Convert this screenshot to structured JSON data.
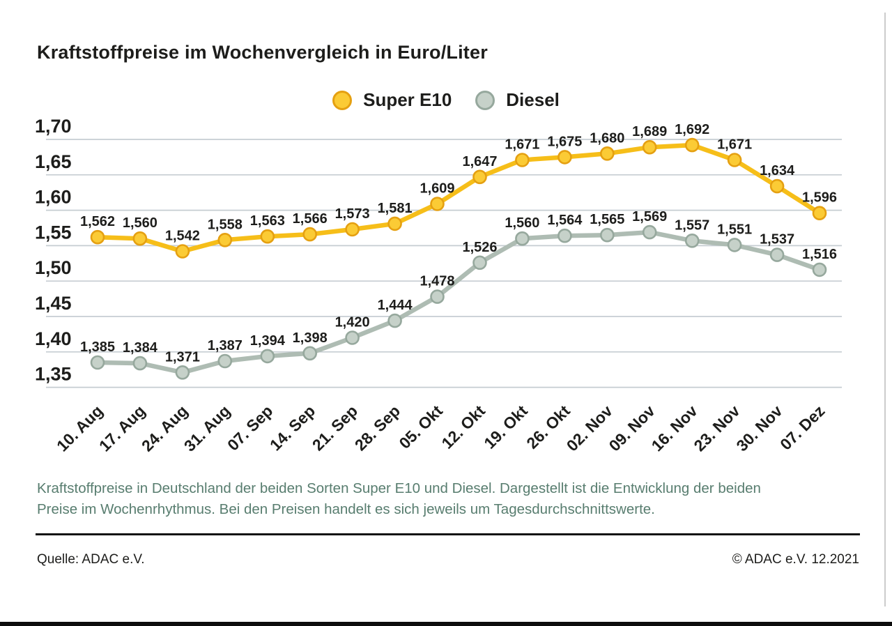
{
  "page": {
    "title": "Kraftstoffpreise im Wochenvergleich in Euro/Liter",
    "description": "Kraftstoffpreise in Deutschland der beiden Sorten Super E10 und Diesel. Dargestellt ist die Entwicklung der beiden Preise im Wochenrhythmus. Bei den Preisen handelt es sich jeweils um Tagesdurchschnittswerte.",
    "source": "Quelle: ADAC e.V.",
    "copyright": "© ADAC e.V. 12.2021"
  },
  "colors": {
    "super_e10_line": "#F6BE19",
    "super_e10_marker_fill": "#FBCB35",
    "super_e10_marker_stroke": "#E5A011",
    "diesel_line": "#AEBCB3",
    "diesel_marker_fill": "#C6D1C9",
    "diesel_marker_stroke": "#96A89D",
    "grid": "#C6CDD2",
    "text": "#1D1D1B",
    "description_text": "#587D6F"
  },
  "chart_data": {
    "type": "line",
    "title": "Kraftstoffpreise im Wochenvergleich in Euro/Liter",
    "categories": [
      "10. Aug",
      "17. Aug",
      "24. Aug",
      "31. Aug",
      "07. Sep",
      "14. Sep",
      "21. Sep",
      "28. Sep",
      "05. Okt",
      "12. Okt",
      "19. Okt",
      "26. Okt",
      "02. Nov",
      "09. Nov",
      "16. Nov",
      "23. Nov",
      "30. Nov",
      "07. Dez"
    ],
    "series": [
      {
        "name": "Super E10",
        "values": [
          1.562,
          1.56,
          1.542,
          1.558,
          1.563,
          1.566,
          1.573,
          1.581,
          1.609,
          1.647,
          1.671,
          1.675,
          1.68,
          1.689,
          1.692,
          1.671,
          1.634,
          1.596
        ]
      },
      {
        "name": "Diesel",
        "values": [
          1.385,
          1.384,
          1.371,
          1.387,
          1.394,
          1.398,
          1.42,
          1.444,
          1.478,
          1.526,
          1.56,
          1.564,
          1.565,
          1.569,
          1.557,
          1.551,
          1.537,
          1.516
        ]
      }
    ],
    "yticks": [
      "1,70",
      "1,65",
      "1,60",
      "1,55",
      "1,50",
      "1,45",
      "1,40",
      "1,35"
    ],
    "ylim": [
      1.33,
      1.72
    ],
    "xlabel": "",
    "ylabel": "Euro/Liter",
    "grid": "horizontal",
    "legend_position": "top-center",
    "value_labels": "above-points, comma decimal, 3 digits"
  }
}
